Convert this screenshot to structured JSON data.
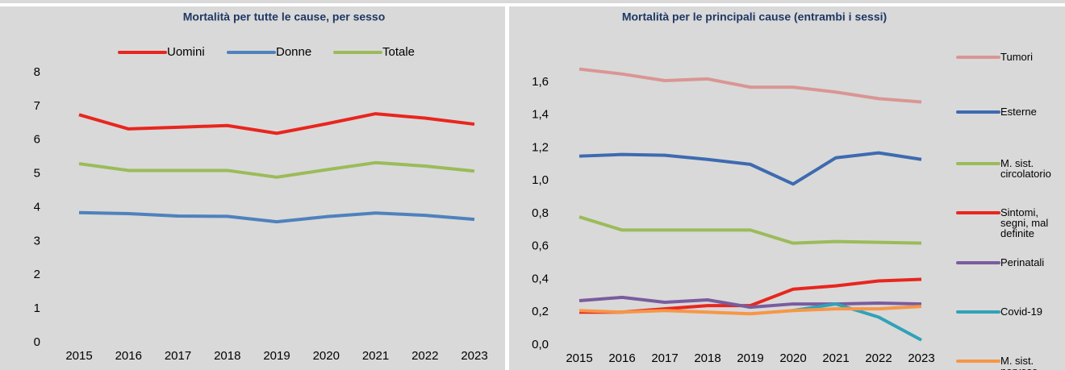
{
  "chart_data": [
    {
      "type": "line",
      "title": "Mortalità per tutte le cause, per sesso",
      "legend": "top",
      "x": [
        "2015",
        "2016",
        "2017",
        "2018",
        "2019",
        "2020",
        "2021",
        "2022",
        "2023"
      ],
      "ylim": [
        0,
        8
      ],
      "yticks": [
        0,
        1,
        2,
        3,
        4,
        5,
        6,
        7,
        8
      ],
      "series": [
        {
          "name": "Uomini",
          "color": "#e8261e",
          "values": [
            6.75,
            6.33,
            6.38,
            6.43,
            6.2,
            6.48,
            6.78,
            6.65,
            6.47
          ]
        },
        {
          "name": "Donne",
          "color": "#4f81bd",
          "values": [
            3.85,
            3.82,
            3.75,
            3.74,
            3.58,
            3.73,
            3.84,
            3.77,
            3.65
          ]
        },
        {
          "name": "Totale",
          "color": "#9bbb59",
          "values": [
            5.3,
            5.1,
            5.1,
            5.1,
            4.9,
            5.12,
            5.33,
            5.23,
            5.08
          ]
        }
      ]
    },
    {
      "type": "line",
      "title": "Mortalità per le principali cause (entrambi i sessi)",
      "legend": "right",
      "x": [
        "2015",
        "2016",
        "2017",
        "2018",
        "2019",
        "2020",
        "2021",
        "2022",
        "2023"
      ],
      "ylim": [
        0,
        1.6
      ],
      "yticks": [
        {
          "value": 0,
          "label": "0,0"
        },
        {
          "value": 0.2,
          "label": "0,2"
        },
        {
          "value": 0.4,
          "label": "0,4"
        },
        {
          "value": 0.6,
          "label": "0,6"
        },
        {
          "value": 0.8,
          "label": "0,8"
        },
        {
          "value": 1,
          "label": "1,0"
        },
        {
          "value": 1.2,
          "label": "1,2"
        },
        {
          "value": 1.4,
          "label": "1,4"
        },
        {
          "value": 1.6,
          "label": "1,6"
        }
      ],
      "series": [
        {
          "name": "Tumori",
          "color": "#d99694",
          "values": [
            1.68,
            1.65,
            1.61,
            1.62,
            1.57,
            1.57,
            1.54,
            1.5,
            1.48
          ]
        },
        {
          "name": "Esterne",
          "color": "#3d6bb0",
          "values": [
            1.15,
            1.16,
            1.155,
            1.13,
            1.1,
            0.98,
            1.14,
            1.17,
            1.13
          ]
        },
        {
          "name": "M. sist. circolatorio",
          "color": "#9bbb59",
          "values": [
            0.78,
            0.7,
            0.7,
            0.7,
            0.7,
            0.62,
            0.63,
            0.625,
            0.62
          ]
        },
        {
          "name": "Sintomi, segni, mal definite",
          "color": "#e8261e",
          "values": [
            0.2,
            0.2,
            0.22,
            0.24,
            0.24,
            0.34,
            0.36,
            0.39,
            0.4
          ]
        },
        {
          "name": "Perinatali",
          "color": "#7a5c9e",
          "values": [
            0.27,
            0.29,
            0.26,
            0.275,
            0.23,
            0.25,
            0.25,
            0.255,
            0.25
          ]
        },
        {
          "name": "Covid-19",
          "color": "#31a2b8",
          "values": [
            null,
            null,
            null,
            null,
            null,
            0.21,
            0.25,
            0.17,
            0.03
          ]
        },
        {
          "name": "M. sist. nervoso",
          "color": "#f79646",
          "values": [
            0.21,
            0.2,
            0.21,
            0.2,
            0.19,
            0.21,
            0.22,
            0.22,
            0.235
          ]
        }
      ]
    }
  ]
}
